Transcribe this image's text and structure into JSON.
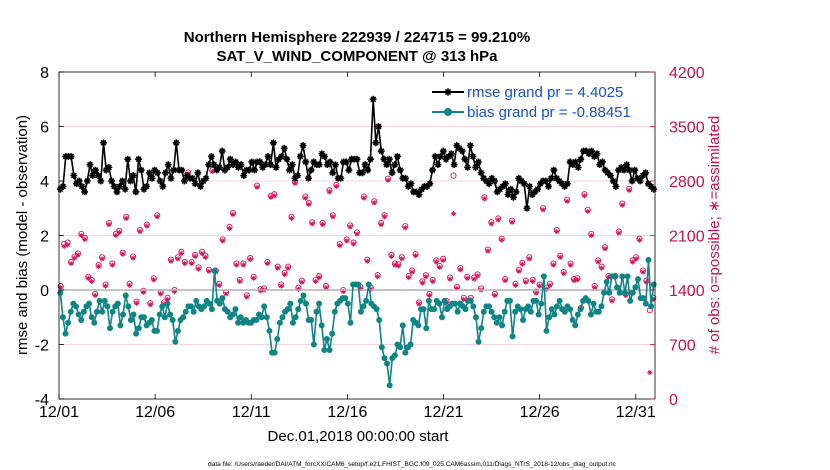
{
  "chart_data": {
    "type": "line",
    "title_line1": "Northern Hemisphere 222939 / 224715 = 99.210%",
    "title_line2": "SAT_V_WIND_COMPONENT @ 313 hPa",
    "xlabel": "Dec.01,2018 00:00:00 start",
    "ylabel": "rmse and bias (model - observation)",
    "ylabel_right": "# of obs: o=possible; ∗=assimilated",
    "xlim": [
      0,
      31
    ],
    "ylim": [
      -4,
      8
    ],
    "ylim_right": [
      0,
      4200
    ],
    "x_ticks": [
      0,
      5,
      10,
      15,
      20,
      25,
      30
    ],
    "x_tick_labels": [
      "12/01",
      "12/06",
      "12/11",
      "12/16",
      "12/21",
      "12/26",
      "12/31"
    ],
    "y_ticks": [
      -4,
      -2,
      0,
      2,
      4,
      6,
      8
    ],
    "y_tick_labels": [
      "-4",
      "-2",
      "0",
      "2",
      "4",
      "6",
      "8"
    ],
    "y_right_ticks": [
      0,
      700,
      1400,
      2100,
      2800,
      3500,
      4200
    ],
    "y_right_tick_labels": [
      "0",
      "700",
      "1400",
      "2100",
      "2800",
      "3500",
      "4200"
    ],
    "series": [
      {
        "name": "rmse grand pr = 4.4025",
        "color": "#000000",
        "marker": "asterisk",
        "values": [
          3.7,
          3.8,
          4.9,
          4.9,
          4.9,
          4.2,
          3.9,
          4.0,
          3.8,
          3.6,
          4.0,
          4.6,
          4.2,
          4.4,
          4.2,
          4.0,
          5.4,
          4.4,
          4.5,
          4.0,
          3.8,
          3.6,
          3.8,
          4.0,
          3.7,
          4.8,
          4.0,
          4.2,
          3.6,
          4.8,
          4.4,
          3.7,
          3.8,
          4.3,
          4.1,
          4.4,
          4.3,
          4.0,
          3.8,
          4.3,
          4.6,
          4.1,
          4.4,
          5.4,
          4.4,
          4.4,
          4.0,
          4.2,
          4.1,
          4.1,
          3.9,
          4.3,
          3.8,
          4.0,
          4.1,
          4.6,
          4.9,
          4.6,
          4.4,
          4.5,
          5.1,
          4.4,
          4.5,
          4.8,
          4.6,
          4.7,
          4.5,
          4.6,
          4.2,
          4.4,
          4.4,
          4.7,
          4.4,
          4.7,
          4.7,
          4.5,
          4.6,
          4.9,
          4.6,
          5.4,
          4.5,
          4.8,
          4.9,
          5.2,
          4.8,
          4.4,
          4.6,
          4.1,
          4.2,
          4.9,
          5.3,
          4.7,
          4.1,
          4.4,
          4.7,
          4.6,
          4.6,
          5.0,
          4.9,
          4.6,
          4.7,
          4.3,
          4.6,
          4.1,
          4.1,
          4.7,
          4.7,
          4.4,
          4.8,
          4.8,
          4.8,
          4.3,
          4.3,
          4.6,
          4.4,
          4.8,
          7.0,
          5.4,
          6.0,
          5.1,
          4.8,
          4.6,
          4.8,
          4.3,
          4.6,
          4.9,
          4.4,
          4.1,
          4.1,
          3.8,
          3.9,
          3.6,
          3.6,
          3.5,
          3.7,
          3.8,
          3.8,
          3.9,
          4.4,
          4.9,
          4.6,
          4.9,
          5.1,
          4.8,
          4.9,
          5.0,
          4.6,
          5.3,
          5.2,
          5.1,
          4.8,
          4.5,
          5.3,
          4.9,
          4.5,
          4.7,
          4.3,
          4.1,
          4.0,
          3.9,
          4.1,
          4.0,
          3.6,
          3.7,
          3.8,
          3.9,
          3.5,
          3.7,
          3.4,
          3.6,
          4.1,
          4.0,
          3.9,
          3.0,
          3.8,
          3.5,
          3.6,
          3.7,
          3.9,
          4.0,
          4.0,
          3.8,
          4.1,
          4.4,
          4.1,
          4.0,
          3.9,
          3.8,
          3.9,
          4.7,
          4.6,
          4.7,
          4.5,
          4.8,
          5.1,
          5.1,
          5.0,
          5.1,
          4.9,
          5.0,
          4.6,
          4.7,
          4.4,
          4.3,
          4.2,
          4.0,
          3.8,
          4.4,
          4.5,
          4.4,
          4.6,
          4.4,
          4.0,
          4.4,
          4.1,
          4.0,
          4.2,
          4.3,
          3.9,
          3.8,
          3.7
        ]
      },
      {
        "name": "bias grand pr = -0.88451",
        "color": "#0f8585",
        "marker": "circle",
        "values": [
          -0.1,
          -1.0,
          -1.6,
          -1.2,
          -0.8,
          -0.5,
          -0.6,
          -0.9,
          -1.1,
          -0.8,
          -0.6,
          -0.5,
          -1.0,
          -1.2,
          -0.8,
          -0.4,
          -0.8,
          -0.4,
          -0.6,
          -1.4,
          -0.8,
          -0.6,
          -0.5,
          -1.3,
          -0.9,
          -0.2,
          -0.6,
          -1.1,
          -0.9,
          -1.6,
          -1.4,
          -1.0,
          -1.0,
          -1.3,
          -1.2,
          -1.1,
          -1.5,
          -1.5,
          -0.9,
          -0.6,
          -1.0,
          -0.5,
          -0.9,
          -1.1,
          -1.9,
          -1.5,
          -1.1,
          -1.0,
          -0.8,
          -0.6,
          -0.6,
          -0.8,
          -0.4,
          -0.6,
          -0.7,
          -0.6,
          -0.4,
          -0.5,
          -0.7,
          0.7,
          -0.4,
          -0.5,
          -0.3,
          -0.7,
          -0.8,
          -1.0,
          -0.9,
          -0.7,
          -1.2,
          -1.0,
          -1.2,
          -1.1,
          -1.2,
          -1.2,
          -1.1,
          -1.1,
          -0.9,
          -1.0,
          -0.6,
          -1.0,
          -1.5,
          -2.3,
          -2.3,
          -1.8,
          -1.2,
          -1.0,
          -0.8,
          -0.7,
          -0.5,
          -1.2,
          -1.0,
          -0.7,
          -0.4,
          -0.2,
          -0.5,
          -1.1,
          -1.1,
          -2.0,
          -0.8,
          -0.5,
          -1.3,
          -2.2,
          -1.8,
          -2.2,
          -1.6,
          -0.8,
          -0.5,
          -0.4,
          -0.3,
          -0.3,
          -0.5,
          -1.2,
          0.2,
          0.2,
          0.2,
          -0.8,
          -0.6,
          -0.4,
          0.2,
          -0.5,
          -0.6,
          -0.7,
          -1.1,
          -2.1,
          -2.5,
          -2.7,
          -3.5,
          -2.5,
          -2.4,
          -2.0,
          -2.1,
          -1.3,
          -2.3,
          -2.1,
          -2.0,
          -1.1,
          -1.2,
          -1.3,
          -0.7,
          -0.7,
          -1.4,
          -0.4,
          -0.7,
          -0.7,
          -0.4,
          -0.5,
          -1.0,
          -0.4,
          -0.7,
          -0.6,
          -0.5,
          -0.5,
          -0.8,
          -0.5,
          -0.6,
          -0.7,
          -0.4,
          -0.4,
          -0.6,
          -1.0,
          -1.9,
          -1.4,
          -0.8,
          -0.6,
          -0.6,
          -0.8,
          -1.0,
          -1.2,
          -1.0,
          -1.3,
          -0.8,
          -0.4,
          -0.4,
          -1.7,
          -0.8,
          -0.6,
          -0.7,
          -1.1,
          -0.7,
          -0.6,
          -0.8,
          -0.4,
          -0.4,
          -0.9,
          -0.5,
          0.5,
          -1.5,
          -1.0,
          -0.7,
          -0.9,
          -0.6,
          -0.4,
          -0.7,
          -0.8,
          -0.6,
          -0.7,
          -1.1,
          -1.3,
          -0.9,
          -0.7,
          -0.4,
          -0.3,
          -0.4,
          -0.9,
          -0.5,
          -0.8,
          -0.8,
          -0.6,
          -0.1,
          0.3,
          -0.1,
          0.5,
          0.5,
          0.1,
          -0.1,
          0.5,
          -0.1,
          0.5,
          -0.4,
          -0.1,
          0.1,
          0.4,
          -0.3,
          -0.3,
          -0.5,
          1.1,
          -0.6,
          0.2
        ]
      }
    ],
    "obs_possible": [
      1450,
      1990,
      2010,
      1760,
      1830,
      1870,
      2120,
      2070,
      1570,
      1530,
      1350,
      1720,
      1820,
      1470,
      2260,
      1740,
      2120,
      2160,
      1880,
      2340,
      1480,
      1830,
      1250,
      2170,
      1390,
      2240,
      1230,
      1550,
      2360,
      1370,
      1240,
      1300,
      1790,
      1400,
      1820,
      1890,
      1760,
      2910,
      1760,
      1850,
      1690,
      1890,
      1840,
      1660,
      2940,
      1650,
      1480,
      2050,
      1370,
      2210,
      2390,
      1740,
      1530,
      1740,
      1330,
      1810,
      1570,
      2740,
      1410,
      1420,
      1760,
      2610,
      2630,
      1700,
      1470,
      1620,
      1700,
      2340,
      2790,
      1430,
      1520,
      2600,
      2520,
      2270,
      1530,
      1580,
      2260,
      1450,
      2680,
      2360,
      2750,
      1990,
      1400,
      2050,
      2230,
      2010,
      2140,
      1440,
      2600,
      1790,
      1430,
      2540,
      1590,
      2260,
      2360,
      2830,
      1850,
      1740,
      1730,
      1820,
      2220,
      1580,
      1650,
      1860,
      1240,
      1510,
      1590,
      1350,
      1530,
      1780,
      1710,
      1800,
      1260,
      1560,
      2870,
      1440,
      1680,
      1300,
      1570,
      1300,
      1560,
      1600,
      1420,
      2590,
      1920,
      2270,
      1350,
      2320,
      2060,
      1540,
      2670,
      2290,
      1480,
      1660,
      1750,
      1520,
      1820,
      1530,
      1380,
      1470,
      2450,
      1430,
      1480,
      1740,
      2170,
      1840,
      1630,
      2560,
      1740,
      1540,
      1550,
      1170,
      2630,
      2430,
      2120,
      1450,
      1780,
      1700,
      1950,
      1580,
      1280,
      1580,
      2150,
      2510,
      1350,
      2700,
      1780,
      1820,
      2060,
      1650,
      1520,
      1140,
      1300
    ],
    "obs_assimilated": [
      1430,
      1960,
      1980,
      1740,
      1810,
      1850,
      2100,
      2050,
      1550,
      1510,
      1330,
      1700,
      1800,
      1450,
      2240,
      1720,
      2100,
      2140,
      1860,
      2320,
      1460,
      1810,
      1230,
      2150,
      1370,
      2220,
      1210,
      1530,
      2340,
      1350,
      1220,
      1280,
      1770,
      1380,
      1800,
      1870,
      1740,
      2890,
      1740,
      1830,
      1670,
      1870,
      1820,
      1640,
      2920,
      1630,
      1460,
      2030,
      1350,
      2190,
      2370,
      1720,
      1510,
      1720,
      1310,
      1790,
      1550,
      2720,
      1390,
      1400,
      1740,
      2590,
      2610,
      1680,
      1450,
      1600,
      1680,
      2320,
      2770,
      1410,
      1500,
      2580,
      2500,
      2250,
      1510,
      1560,
      2240,
      1430,
      2660,
      2340,
      2730,
      1970,
      1380,
      2030,
      2210,
      1990,
      2120,
      1420,
      2580,
      1770,
      1410,
      2520,
      1570,
      2240,
      2340,
      2810,
      1830,
      1720,
      1710,
      1800,
      2200,
      1560,
      1630,
      1840,
      1220,
      1490,
      1570,
      1330,
      1510,
      1760,
      1690,
      1780,
      1240,
      1540,
      2380,
      1420,
      1660,
      1280,
      1550,
      1280,
      1540,
      1580,
      1400,
      2570,
      1900,
      2250,
      1330,
      2300,
      2040,
      1520,
      2650,
      2270,
      1460,
      1640,
      1730,
      1500,
      1800,
      1510,
      1360,
      1450,
      2430,
      1410,
      1460,
      1720,
      2150,
      1820,
      1610,
      2540,
      1720,
      1520,
      1530,
      1150,
      2610,
      2410,
      2100,
      1430,
      1760,
      1680,
      1930,
      1560,
      1260,
      1560,
      2130,
      2490,
      1330,
      2680,
      1760,
      1800,
      2040,
      1630,
      1500,
      340,
      1280
    ]
  },
  "footer": "data file: /Users/raeder/DAI/ATM_forcXX/CAM6_setup/f.e21.FHIST_BGC.f09_025.CAM6assim.011/Diags_NTrS_2018-12/obs_diag_output.nc"
}
